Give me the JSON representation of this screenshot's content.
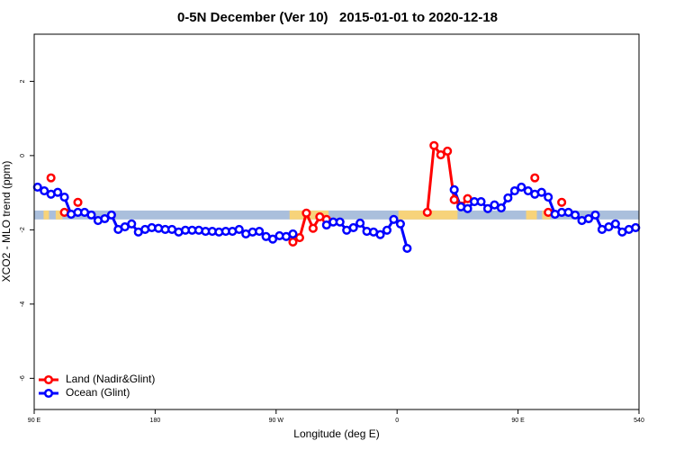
{
  "chart_data": {
    "type": "line",
    "title": "0-5N December (Ver 10)   2015-01-01 to 2020-12-18",
    "x_label": "Longitude (deg E)",
    "y_label": "XCO2 - MLO trend (ppm)",
    "xlim": [
      90,
      540
    ],
    "xticks": [
      {
        "value": 90,
        "label": "90 E"
      },
      180,
      {
        "value": 270,
        "label": "90 W"
      },
      {
        "value": 360,
        "label": "0"
      },
      {
        "value": 450,
        "label": "90 E"
      },
      540
    ],
    "ylim": [
      -6.84,
      3.27
    ],
    "yticks": [
      2,
      0,
      -2,
      -4,
      -6
    ],
    "legend": "bottom-left",
    "band": {
      "y": [
        -1.72,
        -1.48
      ],
      "color": "#aabfdc",
      "land_color": "#f7d37a",
      "land": [
        [
          97,
          101
        ],
        [
          106,
          111
        ],
        [
          280,
          309
        ],
        [
          361,
          405
        ],
        [
          456,
          464
        ],
        [
          468,
          474
        ]
      ]
    },
    "x": [
      92.5,
      97.5,
      102.5,
      107.5,
      112.5,
      117.5,
      122.5,
      127.5,
      132.5,
      137.5,
      142.5,
      147.5,
      152.5,
      157.5,
      162.5,
      167.5,
      172.5,
      177.5,
      182.5,
      187.5,
      192.5,
      197.5,
      202.5,
      207.5,
      212.5,
      217.5,
      222.5,
      227.5,
      232.5,
      237.5,
      242.5,
      247.5,
      252.5,
      257.5,
      262.5,
      267.5,
      272.5,
      277.5,
      282.5,
      287.5,
      292.5,
      297.5,
      302.5,
      307.5,
      312.5,
      317.5,
      322.5,
      327.5,
      332.5,
      337.5,
      342.5,
      347.5,
      352.5,
      357.5,
      362.5,
      367.5,
      372.5,
      377.5,
      382.5,
      387.5,
      392.5,
      397.5,
      402.5,
      407.5,
      412.5,
      417.5,
      422.5,
      427.5,
      432.5,
      437.5,
      442.5,
      447.5,
      452.5,
      457.5,
      462.5,
      467.5,
      472.5,
      477.5,
      482.5,
      487.5,
      492.5,
      497.5,
      502.5,
      507.5,
      512.5,
      517.5,
      522.5,
      527.5,
      532.5,
      537.5
    ],
    "series": [
      {
        "name": "Land (Nadir&Glint)",
        "color": "#ff0000",
        "values": [
          null,
          null,
          -0.6,
          null,
          -1.53,
          null,
          -1.26,
          null,
          null,
          null,
          null,
          null,
          null,
          null,
          null,
          null,
          null,
          null,
          null,
          null,
          null,
          null,
          null,
          null,
          null,
          null,
          null,
          null,
          null,
          null,
          null,
          null,
          null,
          null,
          null,
          null,
          null,
          null,
          -2.33,
          -2.21,
          -1.55,
          -1.96,
          -1.65,
          -1.72,
          null,
          null,
          null,
          null,
          null,
          null,
          null,
          null,
          null,
          null,
          null,
          null,
          null,
          null,
          -1.53,
          0.27,
          0.02,
          0.12,
          -1.19,
          -1.36,
          -1.16,
          null,
          null,
          null,
          null,
          null,
          null,
          null,
          null,
          null,
          -0.6,
          null,
          -1.53,
          null,
          -1.26,
          null,
          null,
          null,
          null,
          null,
          null,
          null,
          null,
          null,
          null,
          null
        ]
      },
      {
        "name": "Ocean (Glint)",
        "color": "#0000ff",
        "values": [
          -0.85,
          -0.95,
          -1.04,
          -0.99,
          -1.12,
          -1.58,
          -1.53,
          -1.53,
          -1.6,
          -1.75,
          -1.7,
          -1.6,
          -1.99,
          -1.92,
          -1.84,
          -2.06,
          -1.99,
          -1.94,
          -1.96,
          -1.99,
          -1.99,
          -2.06,
          -2.01,
          -2.01,
          -2.01,
          -2.04,
          -2.04,
          -2.06,
          -2.04,
          -2.04,
          -1.99,
          -2.11,
          -2.06,
          -2.04,
          -2.18,
          -2.25,
          -2.16,
          -2.18,
          -2.11,
          null,
          null,
          null,
          null,
          -1.87,
          -1.79,
          -1.79,
          -2.01,
          -1.94,
          -1.82,
          -2.04,
          -2.06,
          -2.13,
          -2.01,
          -1.72,
          -1.84,
          -2.5,
          null,
          null,
          null,
          null,
          null,
          null,
          -0.92,
          -1.38,
          -1.43,
          -1.24,
          -1.24,
          -1.43,
          -1.33,
          -1.41,
          -1.14,
          -0.95,
          -0.85,
          -0.95,
          -1.04,
          -0.99,
          -1.12,
          -1.58,
          -1.53,
          -1.53,
          -1.6,
          -1.75,
          -1.7,
          -1.6,
          -1.99,
          -1.92,
          -1.84,
          -2.06,
          -1.99,
          -1.94
        ]
      }
    ]
  }
}
